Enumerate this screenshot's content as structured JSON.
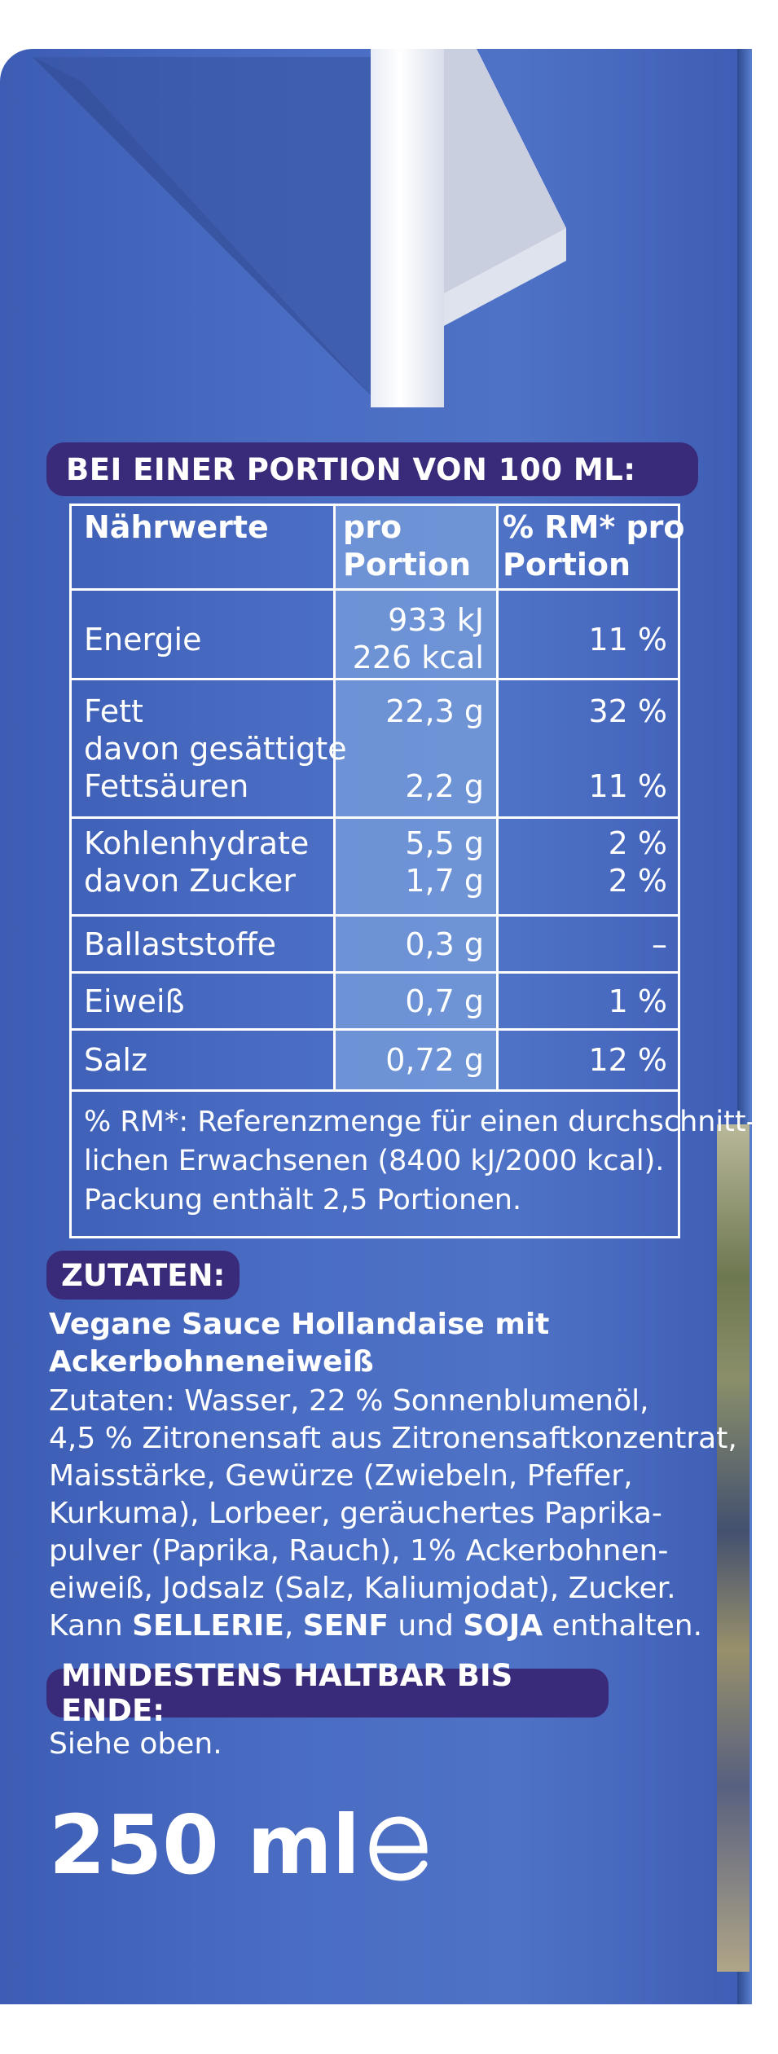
{
  "nutrition": {
    "header": "BEI EINER PORTION VON 100 ML:",
    "col_nutrient": "Nährwerte",
    "col_portion_1": "pro",
    "col_portion_2": "Portion",
    "col_rm_1": "% RM* pro",
    "col_rm_2": "Portion",
    "rows": [
      {
        "label": "Energie",
        "value_1": "933 kJ",
        "value_2": "226 kcal",
        "rm": "11 %"
      },
      {
        "label": "Fett",
        "value": "22,3 g",
        "rm": "32 %",
        "sub_label_1": "davon gesättigte",
        "sub_label_2": "Fettsäuren",
        "sub_value": "2,2 g",
        "sub_rm": "11 %"
      },
      {
        "label": "Kohlenhydrate",
        "value": "5,5 g",
        "rm": "2 %",
        "sub_label": "davon Zucker",
        "sub_value": "1,7 g",
        "sub_rm": "2 %"
      },
      {
        "label": "Ballaststoffe",
        "value": "0,3 g",
        "rm": "–"
      },
      {
        "label": "Eiweiß",
        "value": "0,7 g",
        "rm": "1 %"
      },
      {
        "label": "Salz",
        "value": "0,72 g",
        "rm": "12 %"
      }
    ],
    "footnote_1": "% RM*: Referenzmenge für einen durchschnitt-",
    "footnote_2": "lichen  Erwachsenen (8400 kJ/2000 kcal).",
    "footnote_3": "Packung enthält 2,5 Portionen."
  },
  "ingredients": {
    "header": "ZUTATEN:",
    "product_1": "Vegane Sauce Hollandaise mit",
    "product_2": "Ackerbohneneiweiß",
    "lines": [
      "Zutaten: Wasser, 22 % Sonnenblumenöl,",
      "4,5 % Zitronensaft aus Zitronensaftkonzentrat,",
      "Maisstärke, Gewürze (Zwiebeln, Pfeffer,",
      "Kurkuma), Lorbeer, geräuchertes Paprika-",
      "pulver (Paprika, Rauch), 1% Ackerbohnen-",
      "eiweiß, Jodsalz (Salz, Kaliumjodat), Zucker."
    ],
    "allergen_prefix": "Kann ",
    "allergen_1": "SELLERIE",
    "allergen_sep": ", ",
    "allergen_2": "SENF",
    "allergen_and": " und ",
    "allergen_3": "SOJA",
    "allergen_suffix": " enthalten."
  },
  "best_before": {
    "header": "MINDESTENS HALTBAR BIS ENDE:",
    "text": "Siehe oben."
  },
  "quantity": "250 ml",
  "colors": {
    "carton_blue": "#4a6dc3",
    "pill_purple": "#3a2a7a",
    "column_highlight": "#8fb4e6"
  }
}
